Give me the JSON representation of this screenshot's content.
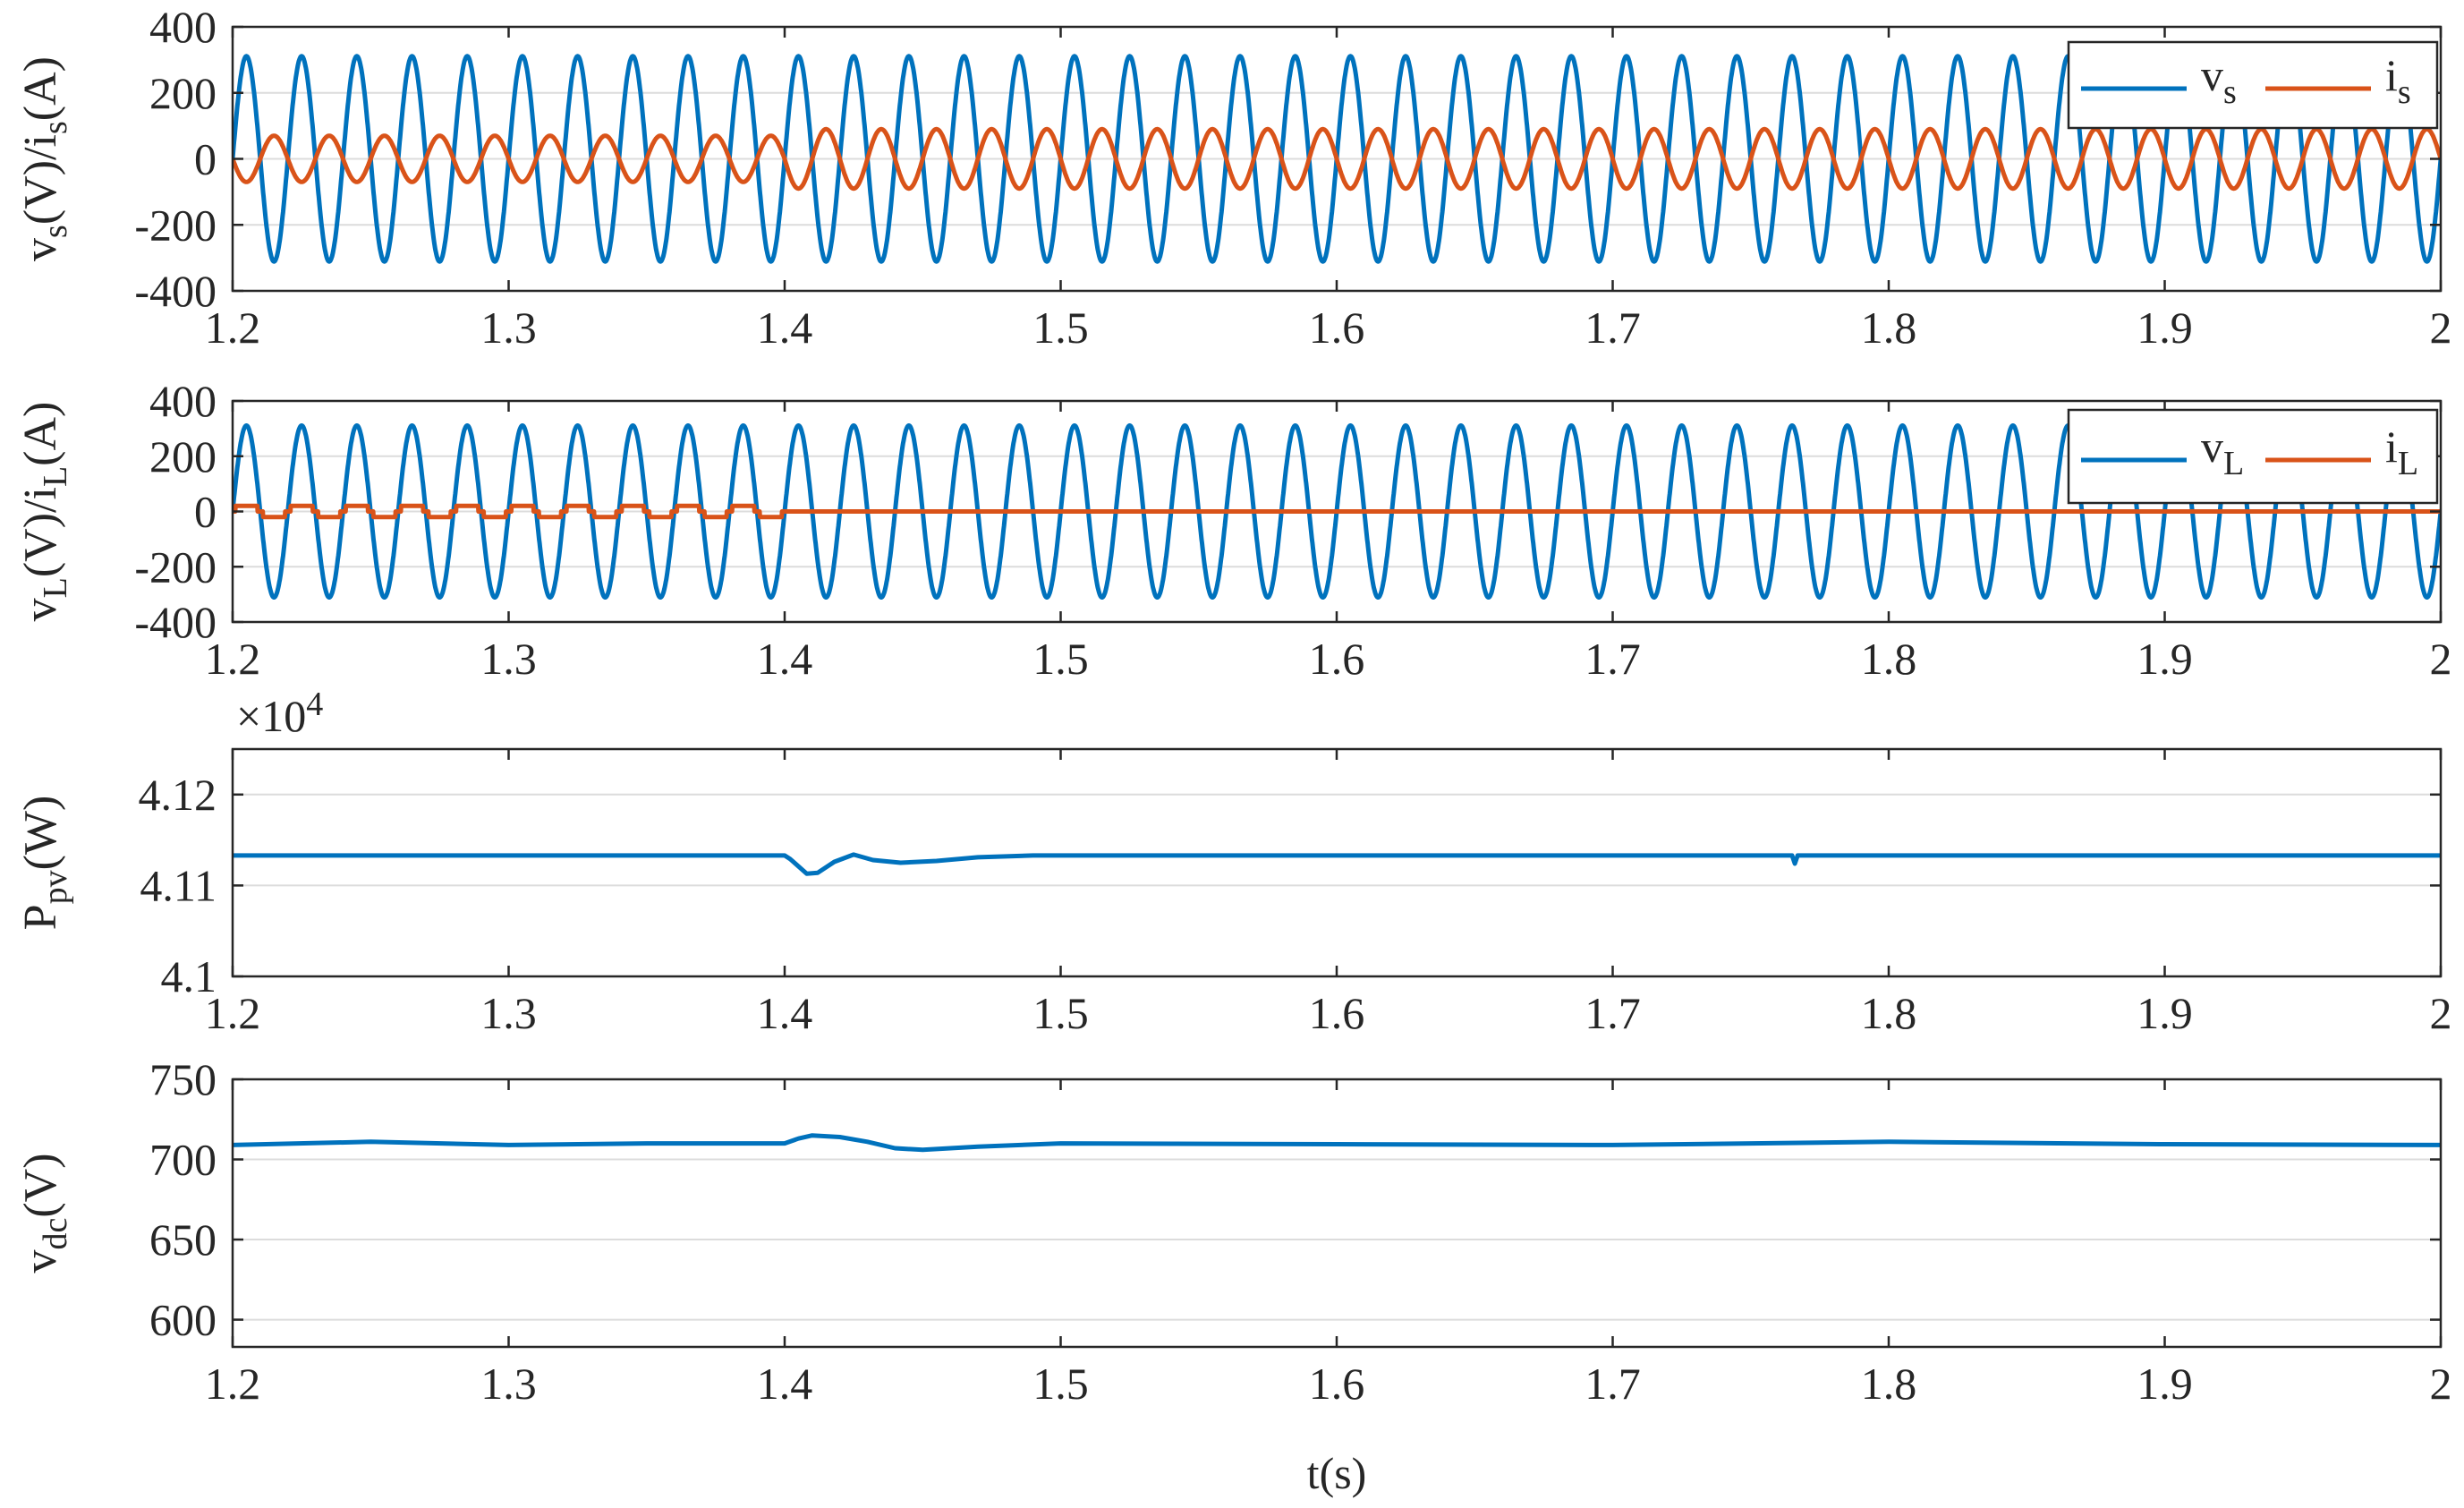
{
  "colors": {
    "blue": "#0072BD",
    "orange": "#D95319",
    "axis": "#262626",
    "grid": "#dcdcdc"
  },
  "chart_data": [
    {
      "type": "line",
      "ylabel": {
        "a": "v",
        "a_sub": "s",
        "b": "(V)/i",
        "b_sub": "s",
        "c": "(A)"
      },
      "xlabel": "",
      "xlim": [
        1.2,
        2
      ],
      "ylim": [
        -400,
        400
      ],
      "xticks": [
        "1.2",
        "1.3",
        "1.4",
        "1.5",
        "1.6",
        "1.7",
        "1.8",
        "1.9",
        "2"
      ],
      "yticks": [
        "400",
        "200",
        "0",
        "-200",
        "-400"
      ],
      "grid": "horizontal",
      "legend_position": "top-right",
      "frequency_hz": 50,
      "series": [
        {
          "name": "v",
          "name_sub": "s",
          "color": "#0072BD",
          "waveform": "sine",
          "amplitude": 311,
          "segments": [
            {
              "from": 1.2,
              "to": 2.0,
              "amplitude": 311
            }
          ]
        },
        {
          "name": "i",
          "name_sub": "s",
          "color": "#D95319",
          "waveform": "sine",
          "phase": "opposite to v_s",
          "segments": [
            {
              "from": 1.2,
              "to": 1.4,
              "amplitude": 70
            },
            {
              "from": 1.4,
              "to": 2.0,
              "amplitude": 90
            }
          ]
        }
      ]
    },
    {
      "type": "line",
      "ylabel": {
        "a": "v",
        "a_sub": "L",
        "b": "(V)/i",
        "b_sub": "L",
        "c": "(A)"
      },
      "xlabel": "",
      "xlim": [
        1.2,
        2
      ],
      "ylim": [
        -400,
        400
      ],
      "xticks": [
        "1.2",
        "1.3",
        "1.4",
        "1.5",
        "1.6",
        "1.7",
        "1.8",
        "1.9",
        "2"
      ],
      "yticks": [
        "400",
        "200",
        "0",
        "-200",
        "-400"
      ],
      "grid": "horizontal",
      "legend_position": "top-right",
      "frequency_hz": 50,
      "series": [
        {
          "name": "v",
          "name_sub": "L",
          "color": "#0072BD",
          "waveform": "sine",
          "amplitude": 311,
          "segments": [
            {
              "from": 1.2,
              "to": 2.0,
              "amplitude": 311
            }
          ]
        },
        {
          "name": "i",
          "name_sub": "L",
          "color": "#D95319",
          "waveform": "square",
          "segments": [
            {
              "from": 1.2,
              "to": 1.4,
              "amplitude": 20
            },
            {
              "from": 1.4,
              "to": 2.0,
              "amplitude": 0
            }
          ]
        }
      ]
    },
    {
      "type": "line",
      "ylabel": {
        "a": "P",
        "a_sub": "pv",
        "b": "(W)",
        "b_sub": "",
        "c": ""
      },
      "xlabel": "",
      "xlim": [
        1.2,
        2
      ],
      "ylim": [
        4.1,
        4.125
      ],
      "exponent_label": "×10",
      "exponent_power": "4",
      "xticks": [
        "1.2",
        "1.3",
        "1.4",
        "1.5",
        "1.6",
        "1.7",
        "1.8",
        "1.9",
        "2"
      ],
      "yticks": [
        "4.12",
        "4.11",
        "4.1"
      ],
      "ytick_values": [
        4.12,
        4.11,
        4.1
      ],
      "grid": "horizontal",
      "series": [
        {
          "name": "",
          "color": "#0072BD",
          "points": [
            [
              1.2,
              4.1133
            ],
            [
              1.4,
              4.1133
            ],
            [
              1.402,
              4.1129
            ],
            [
              1.408,
              4.1113
            ],
            [
              1.412,
              4.1114
            ],
            [
              1.418,
              4.1126
            ],
            [
              1.425,
              4.1134
            ],
            [
              1.432,
              4.1128
            ],
            [
              1.442,
              4.1125
            ],
            [
              1.455,
              4.1127
            ],
            [
              1.47,
              4.1131
            ],
            [
              1.49,
              4.1133
            ],
            [
              1.765,
              4.1133
            ],
            [
              1.766,
              4.1124
            ],
            [
              1.767,
              4.1133
            ],
            [
              2.0,
              4.1133
            ]
          ]
        }
      ]
    },
    {
      "type": "line",
      "ylabel": {
        "a": "v",
        "a_sub": "dc",
        "b": "(V)",
        "b_sub": "",
        "c": ""
      },
      "xlabel": "t(s)",
      "xlim": [
        1.2,
        2
      ],
      "ylim": [
        583,
        750
      ],
      "xticks": [
        "1.2",
        "1.3",
        "1.4",
        "1.5",
        "1.6",
        "1.7",
        "1.8",
        "1.9",
        "2"
      ],
      "yticks": [
        "750",
        "700",
        "650",
        "600"
      ],
      "ytick_values": [
        750,
        700,
        650,
        600
      ],
      "grid": "horizontal",
      "series": [
        {
          "name": "",
          "color": "#0072BD",
          "points": [
            [
              1.2,
              709
            ],
            [
              1.25,
              711
            ],
            [
              1.3,
              709
            ],
            [
              1.35,
              710
            ],
            [
              1.4,
              710
            ],
            [
              1.405,
              713
            ],
            [
              1.41,
              715
            ],
            [
              1.42,
              714
            ],
            [
              1.43,
              711
            ],
            [
              1.44,
              707
            ],
            [
              1.45,
              706
            ],
            [
              1.47,
              708
            ],
            [
              1.5,
              710
            ],
            [
              1.6,
              709.5
            ],
            [
              1.7,
              709
            ],
            [
              1.8,
              711
            ],
            [
              1.9,
              709.5
            ],
            [
              2.0,
              709
            ]
          ]
        }
      ]
    }
  ]
}
